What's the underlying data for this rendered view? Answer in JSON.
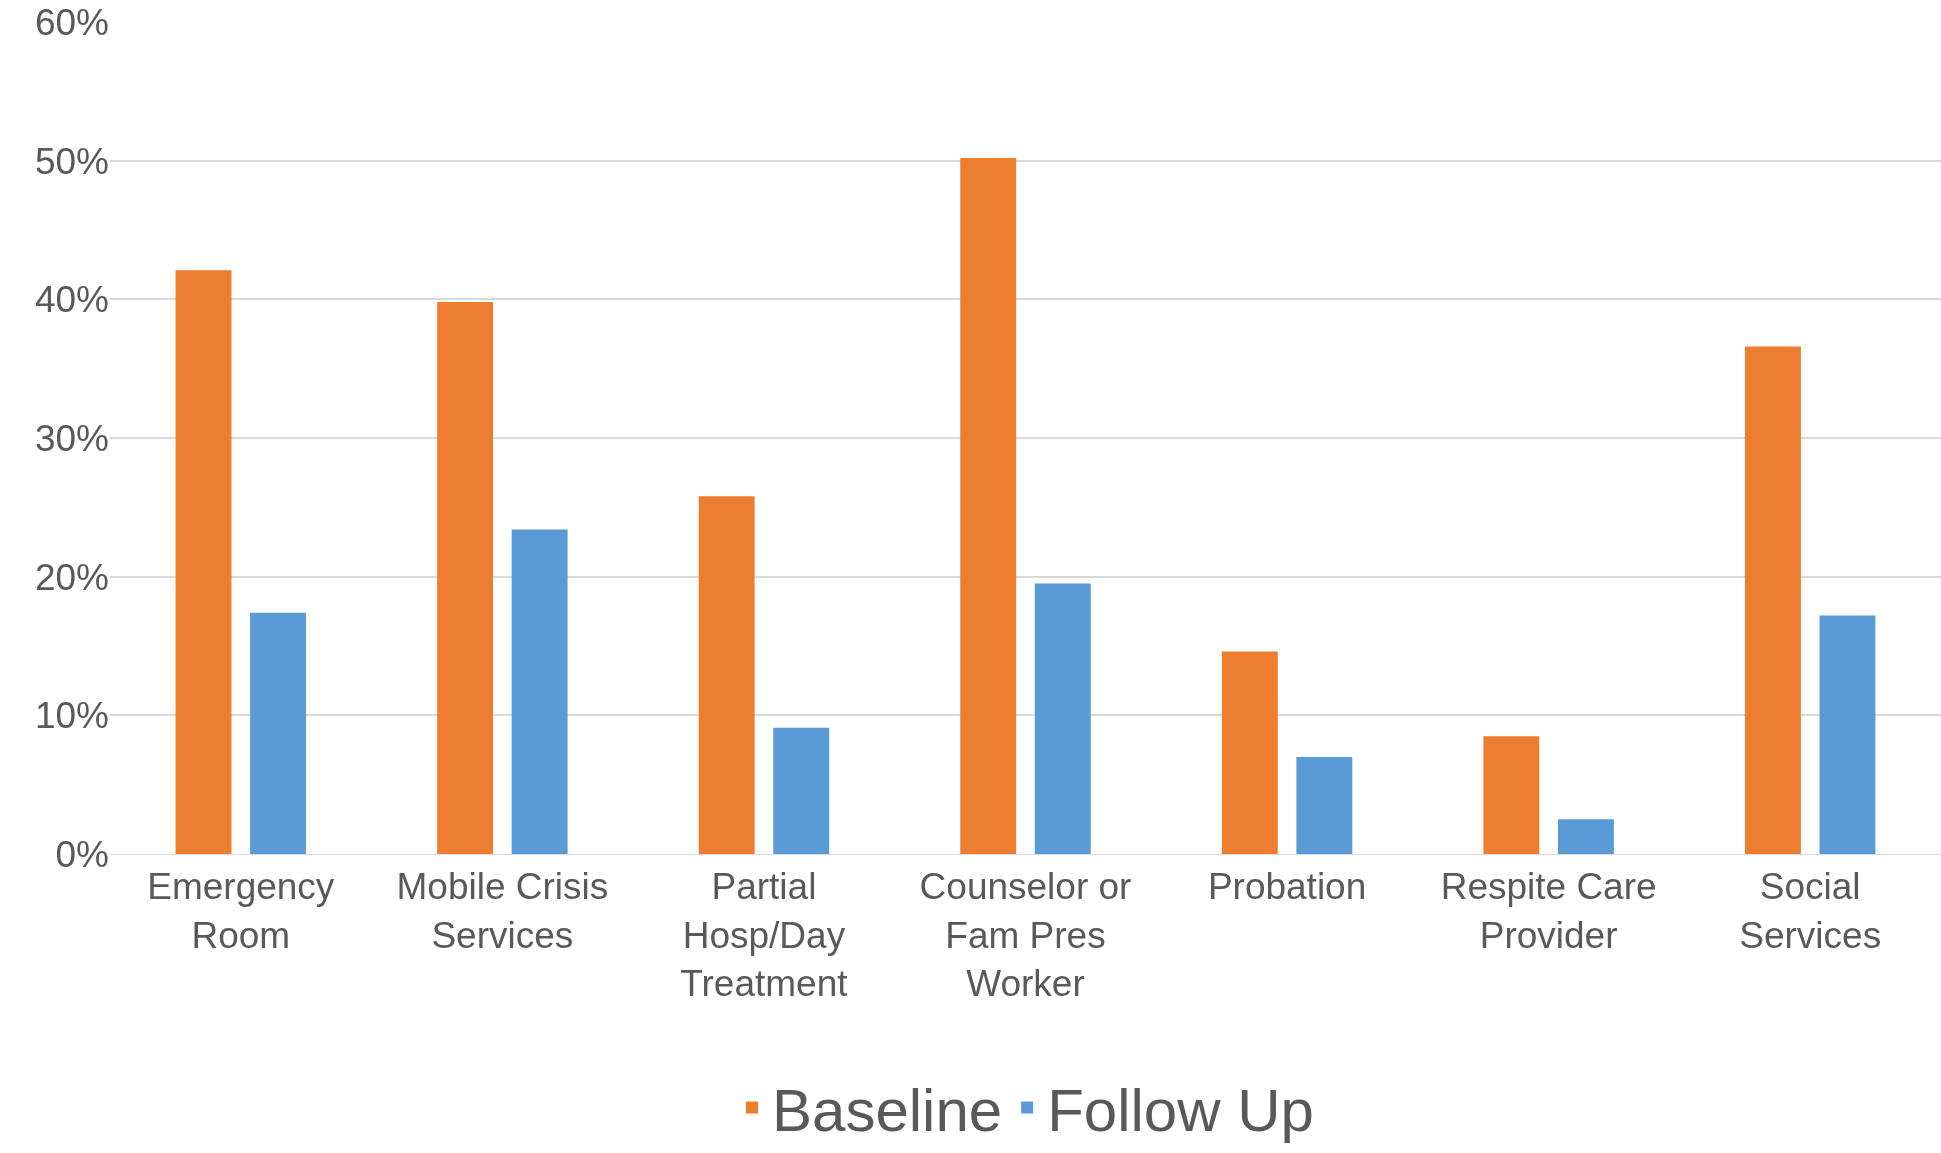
{
  "chart_data": {
    "type": "bar",
    "categories": [
      "Emergency Room",
      "Mobile Crisis Services",
      "Partial Hosp/Day Treatment",
      "Counselor or Fam Pres Worker",
      "Probation",
      "Respite Care Provider",
      "Social Services"
    ],
    "series": [
      {
        "name": "Baseline",
        "color": "#ed7d31",
        "values": [
          42.1,
          39.8,
          25.8,
          50.2,
          14.6,
          8.5,
          36.6
        ]
      },
      {
        "name": "Follow Up",
        "color": "#5b9bd5",
        "values": [
          17.4,
          23.4,
          9.1,
          19.5,
          7.0,
          2.5,
          17.2
        ]
      }
    ],
    "ylim": [
      0,
      60
    ],
    "yticks": [
      {
        "value": 0,
        "label": "0%"
      },
      {
        "value": 10,
        "label": "10%"
      },
      {
        "value": 20,
        "label": "20%"
      },
      {
        "value": 30,
        "label": "30%"
      },
      {
        "value": 40,
        "label": "40%"
      },
      {
        "value": 50,
        "label": "50%"
      },
      {
        "value": 60,
        "label": "60%"
      }
    ],
    "grid": "y",
    "legend": "bottom"
  }
}
